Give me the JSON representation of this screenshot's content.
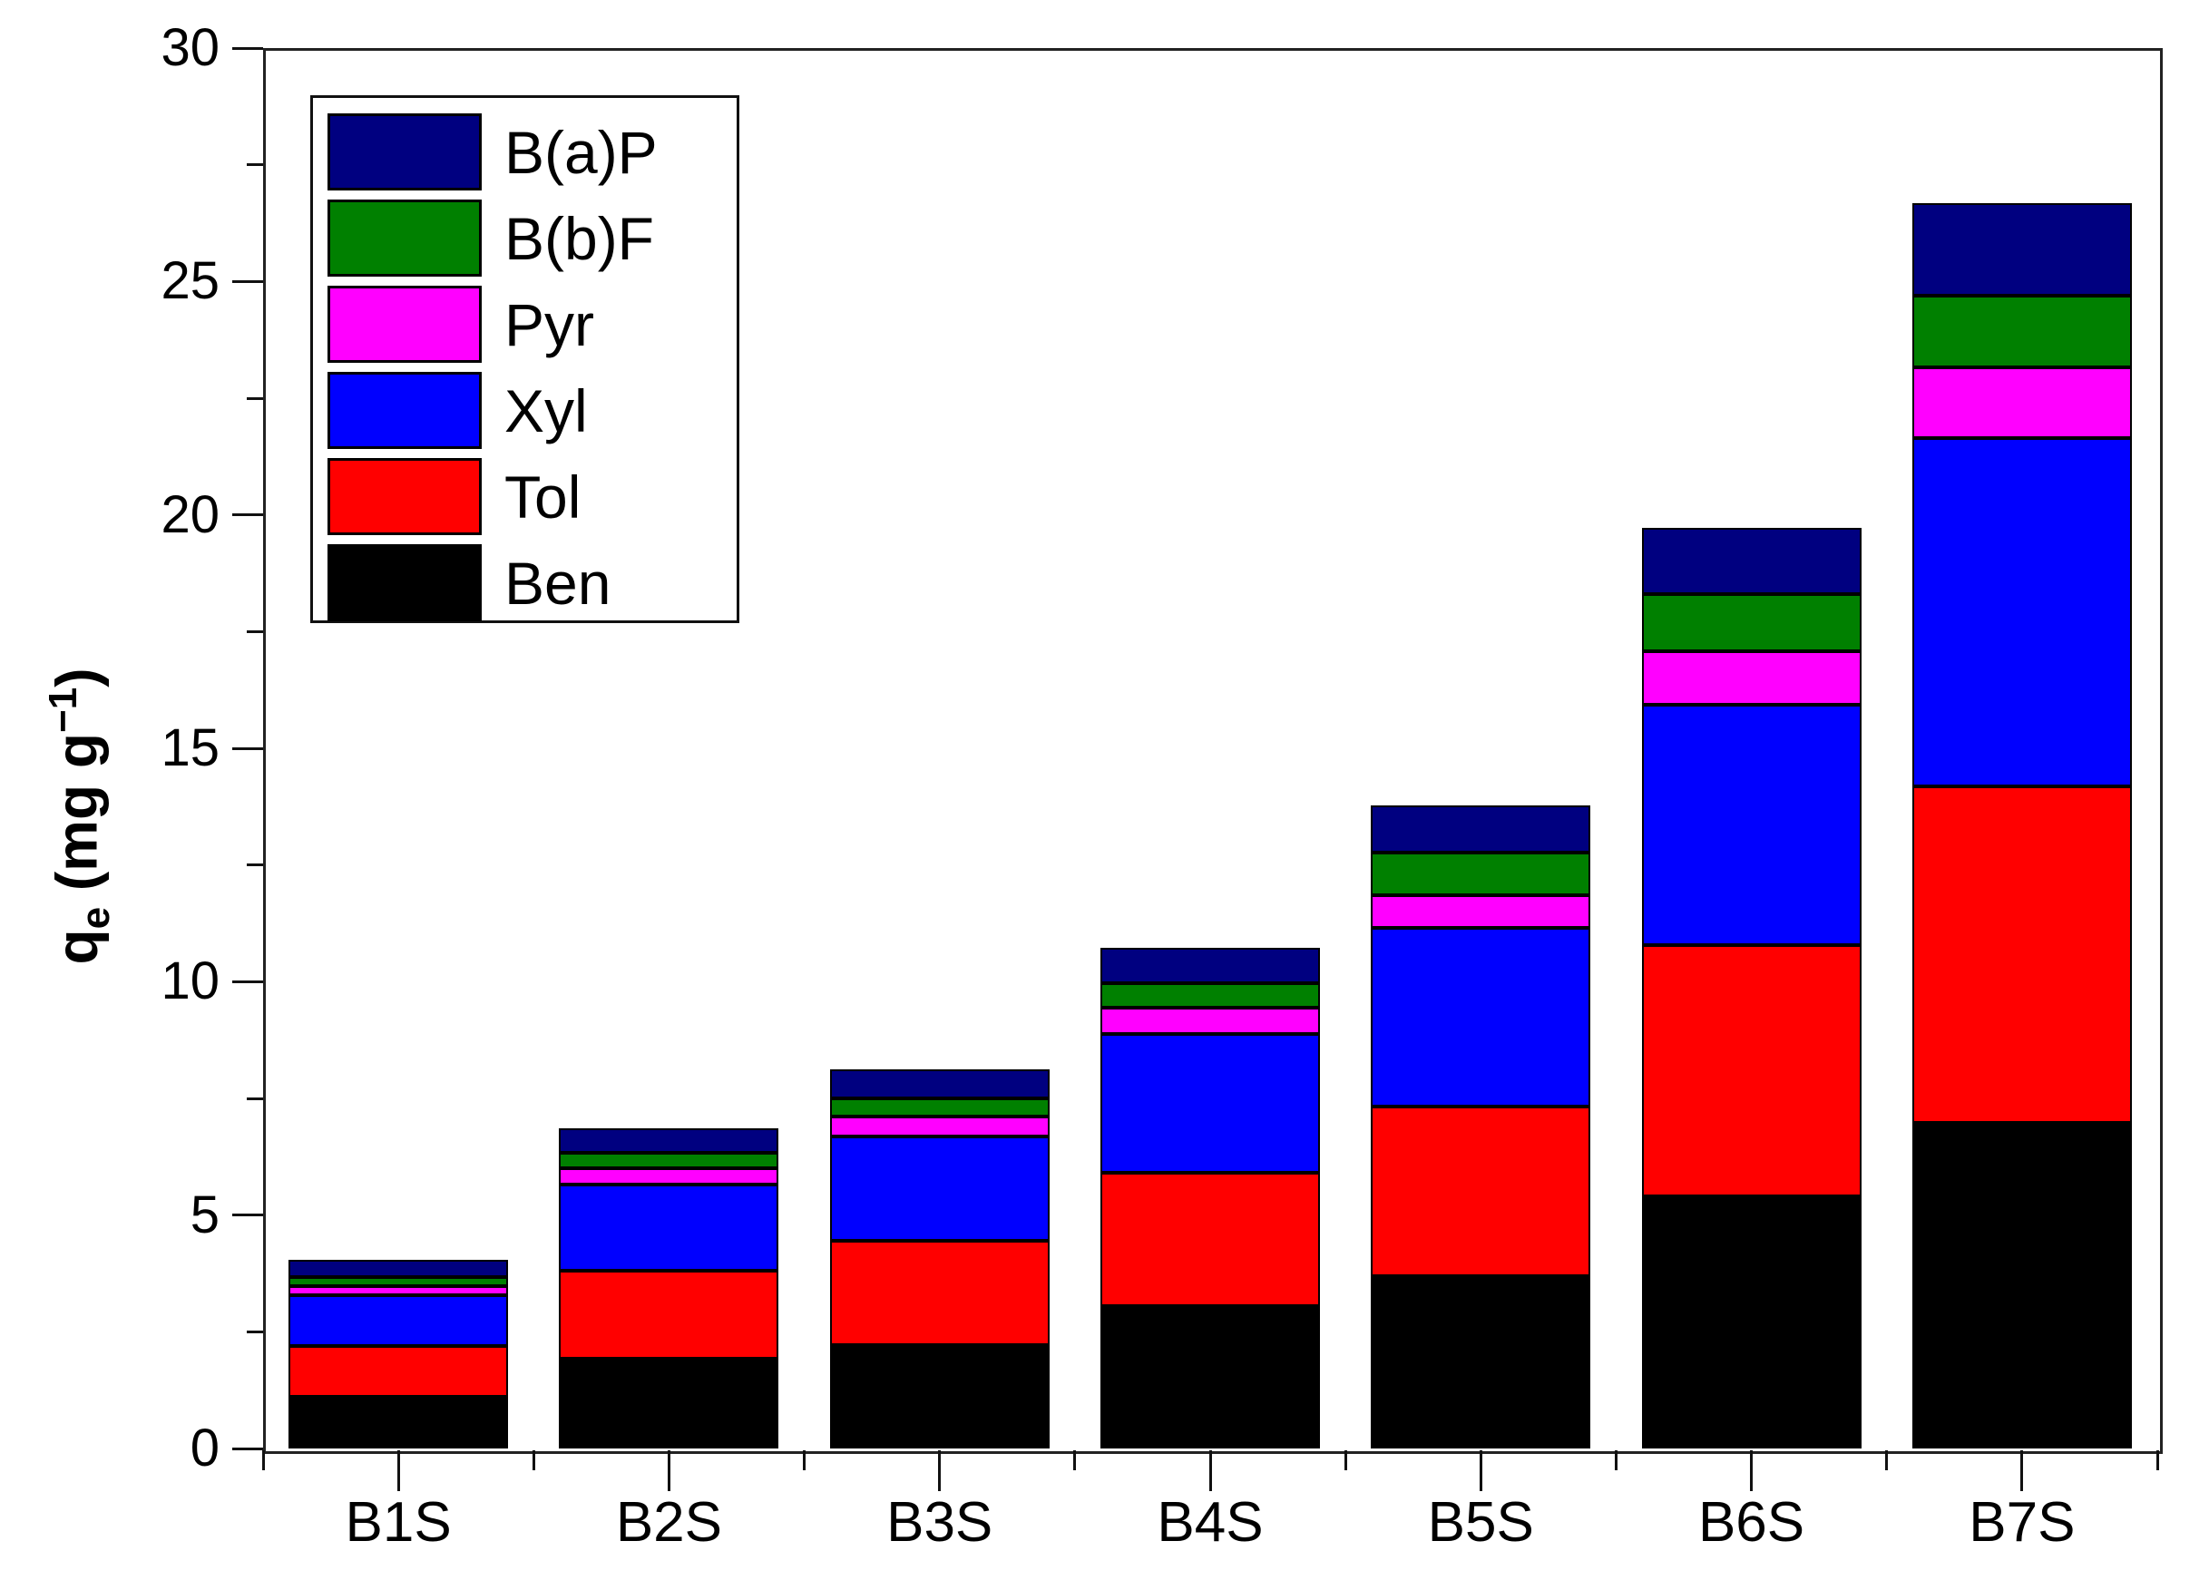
{
  "figure": {
    "background": "#ffffff",
    "ylabel": {
      "pre": "q",
      "sub": "e",
      "mid": " (mg g",
      "sup": "−1",
      "post": ")"
    }
  },
  "chart_data": {
    "type": "bar",
    "stacked": true,
    "title": "",
    "xlabel": "",
    "ylabel": "qe (mg g−1)",
    "ylim": [
      0,
      30
    ],
    "yticks": [
      0,
      5,
      10,
      15,
      20,
      25,
      30
    ],
    "minor_tick_step": 2.5,
    "grid": false,
    "legend_position": "upper-left",
    "legend_order": [
      "B(a)P",
      "B(b)F",
      "Pyr",
      "Xyl",
      "Tol",
      "Ben"
    ],
    "categories": [
      "B1S",
      "B2S",
      "B3S",
      "B4S",
      "B5S",
      "B6S",
      "B7S"
    ],
    "series": [
      {
        "name": "Ben",
        "color": "#000000",
        "values": [
          1.1,
          1.93,
          2.22,
          3.05,
          3.69,
          5.4,
          6.97
        ]
      },
      {
        "name": "Tol",
        "color": "#ff0000",
        "values": [
          1.1,
          1.88,
          2.23,
          2.85,
          3.64,
          5.39,
          7.22
        ]
      },
      {
        "name": "Xyl",
        "color": "#0000ff",
        "values": [
          1.09,
          1.85,
          2.24,
          2.98,
          3.82,
          5.15,
          7.46
        ]
      },
      {
        "name": "Pyr",
        "color": "#ff00ff",
        "values": [
          0.19,
          0.35,
          0.43,
          0.56,
          0.71,
          1.14,
          1.52
        ]
      },
      {
        "name": "B(b)F",
        "color": "#008000",
        "values": [
          0.19,
          0.33,
          0.39,
          0.52,
          0.91,
          1.23,
          1.52
        ]
      },
      {
        "name": "B(a)P",
        "color": "#000080",
        "values": [
          0.37,
          0.52,
          0.62,
          0.76,
          1.0,
          1.42,
          1.98
        ]
      }
    ],
    "totals": [
      4.04,
      6.86,
      8.13,
      10.72,
      13.77,
      19.73,
      26.67
    ],
    "axis_color": "#222222",
    "tick_color": "#111111"
  }
}
